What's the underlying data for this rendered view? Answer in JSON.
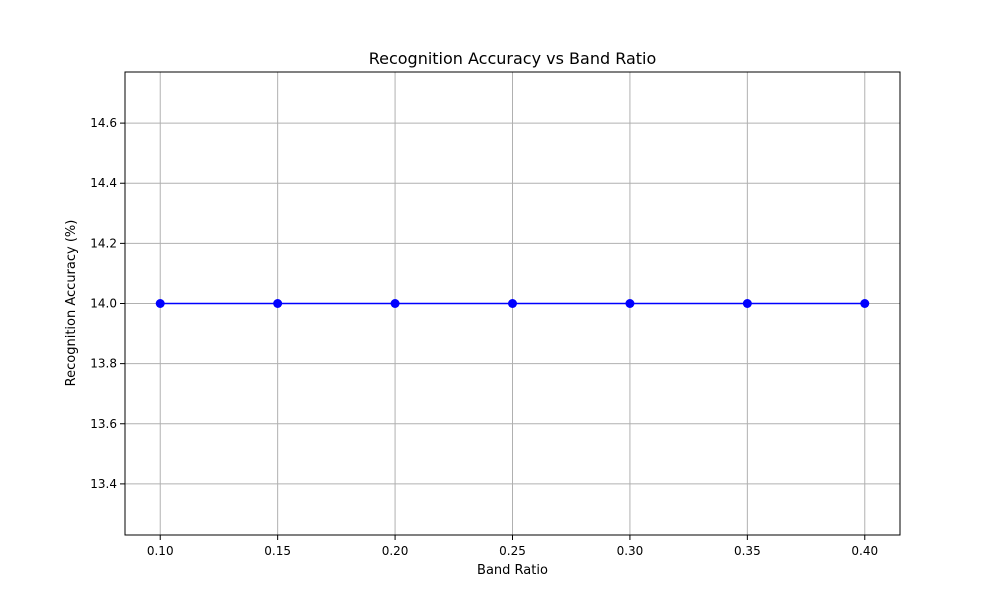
{
  "chart_data": {
    "type": "line",
    "title": "Recognition Accuracy vs Band Ratio",
    "xlabel": "Band Ratio",
    "ylabel": "Recognition Accuracy (%)",
    "x": [
      0.1,
      0.15,
      0.2,
      0.25,
      0.3,
      0.35,
      0.4
    ],
    "x_tick_values": [
      0.1,
      0.15,
      0.2,
      0.25,
      0.3,
      0.35,
      0.4
    ],
    "x_tick_labels": [
      "0.10",
      "0.15",
      "0.20",
      "0.25",
      "0.30",
      "0.35",
      "0.40"
    ],
    "y_tick_values": [
      13.4,
      13.6,
      13.8,
      14.0,
      14.2,
      14.4,
      14.6
    ],
    "y_tick_labels": [
      "13.4",
      "13.6",
      "13.8",
      "14.0",
      "14.2",
      "14.4",
      "14.6"
    ],
    "xlim": [
      0.085,
      0.415
    ],
    "ylim": [
      13.23,
      14.77
    ],
    "grid": true,
    "series": [
      {
        "values": [
          14.0,
          14.0,
          14.0,
          14.0,
          14.0,
          14.0,
          14.0
        ],
        "color": "#0000ff",
        "marker": "circle"
      }
    ]
  }
}
